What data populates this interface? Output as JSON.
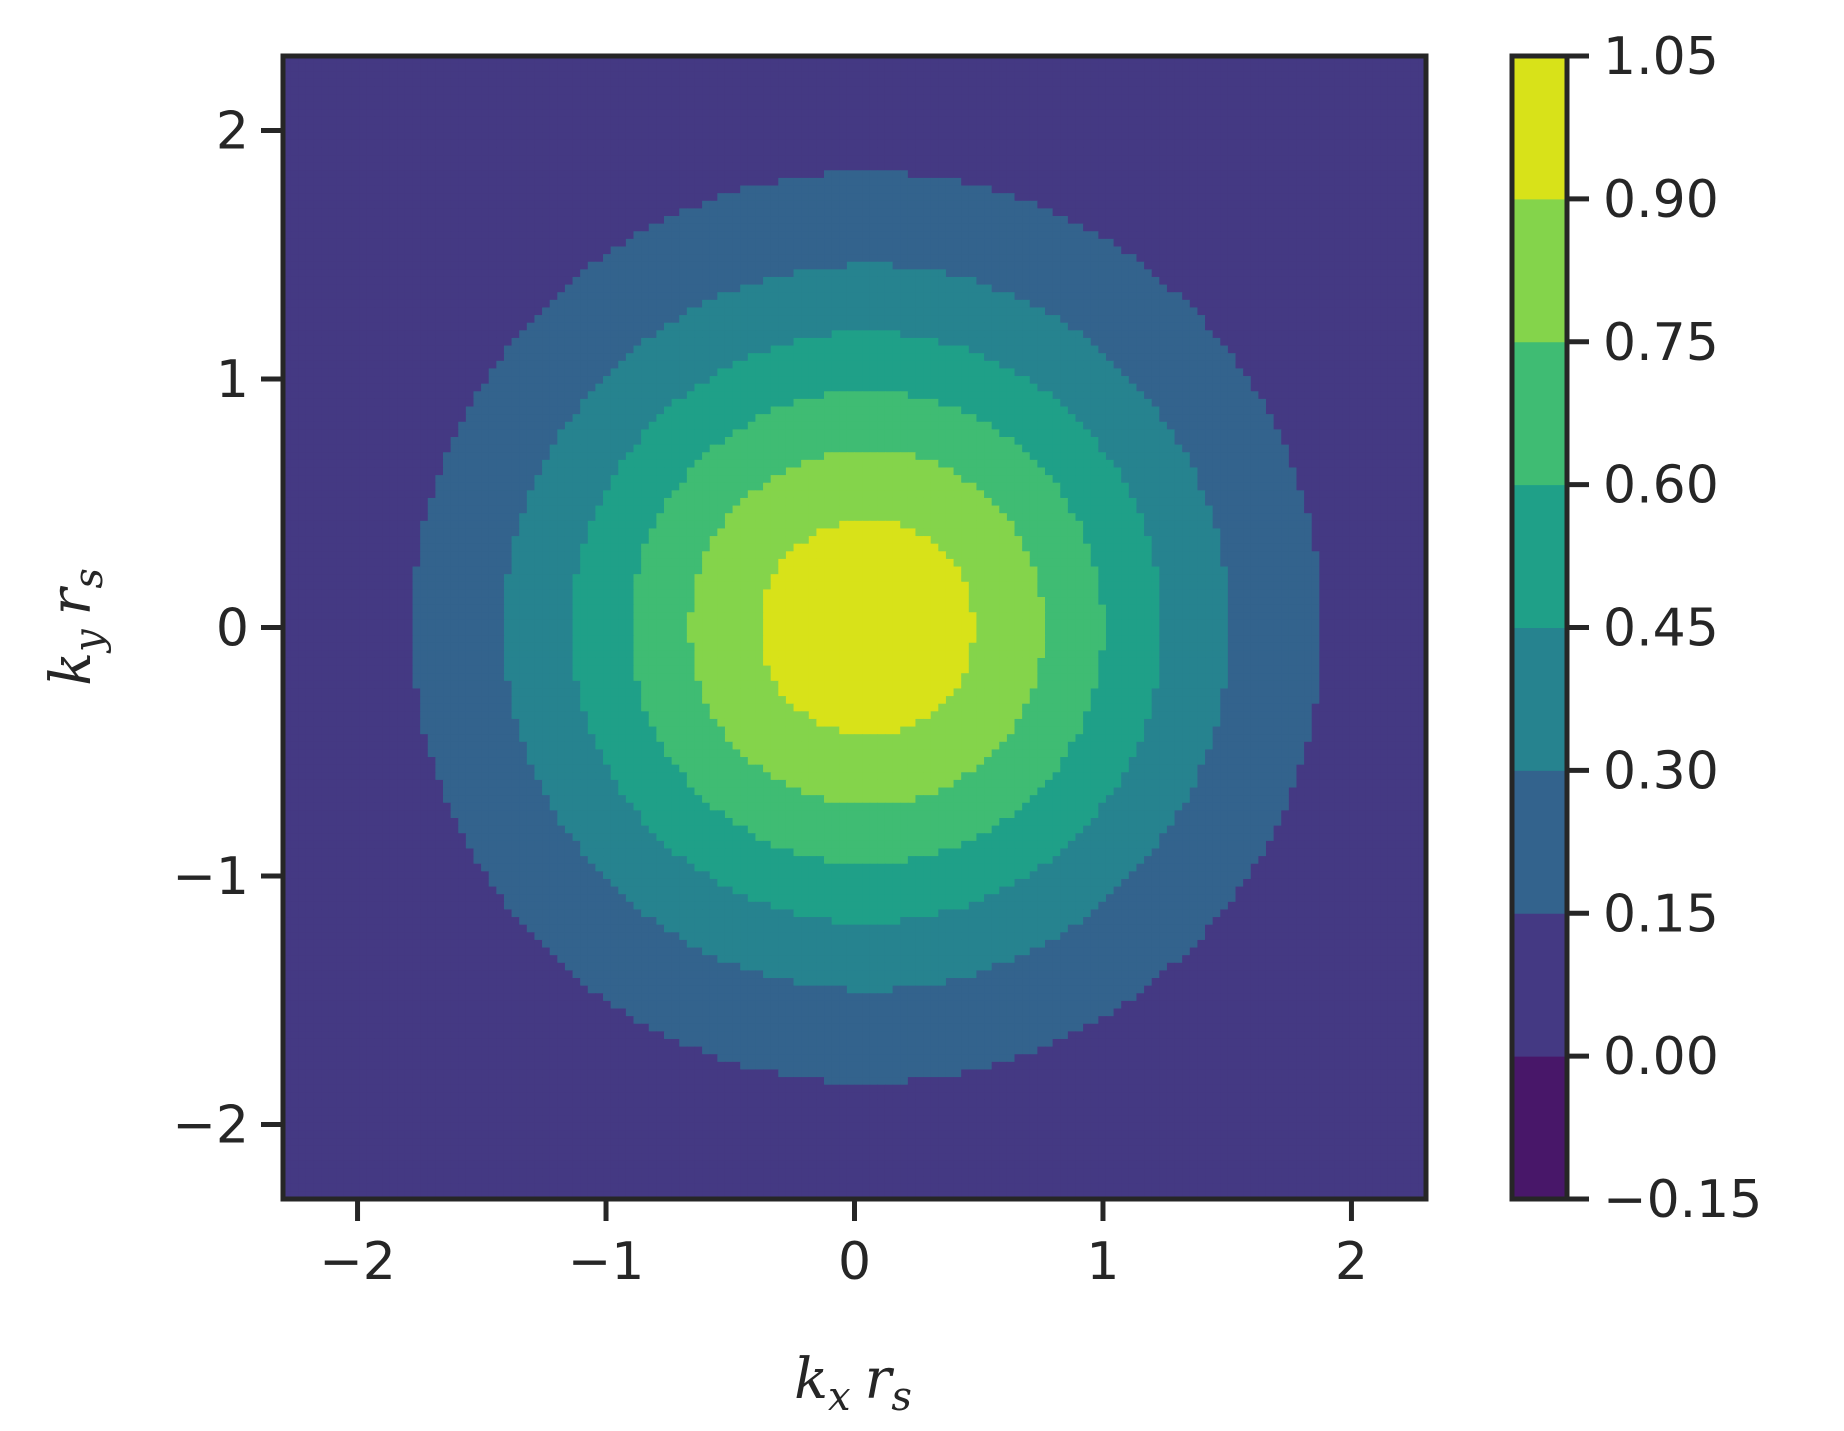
{
  "chart_data": {
    "type": "heatmap",
    "subtype": "filled-contour",
    "title": "",
    "xlabel": {
      "base": "k",
      "sub": "x",
      "base2": "r",
      "sub2": "s"
    },
    "ylabel": {
      "base": "k",
      "sub": "y",
      "base2": "r",
      "sub2": "s"
    },
    "xlim": [
      -2.3,
      2.3
    ],
    "ylim": [
      -2.3,
      2.3
    ],
    "xticks": [
      -2,
      -1,
      0,
      1,
      2
    ],
    "yticks": [
      -2,
      -1,
      0,
      1,
      2
    ],
    "xtick_labels": [
      "−2",
      "−1",
      "0",
      "1",
      "2"
    ],
    "ytick_labels": [
      "−2",
      "−1",
      "0",
      "1",
      "2"
    ],
    "colormap": "viridis",
    "grid": false,
    "field": {
      "description_free": true,
      "center": [
        0.05,
        0.0
      ],
      "peak": 1.0,
      "width": 1.33,
      "shape_exponent": 2.0
    },
    "colorbar": {
      "levels": [
        -0.15,
        0.0,
        0.15,
        0.3,
        0.45,
        0.6,
        0.75,
        0.9,
        1.05
      ],
      "tick_labels": [
        "−0.15",
        "0.00",
        "0.15",
        "0.30",
        "0.45",
        "0.60",
        "0.75",
        "0.90",
        "1.05"
      ],
      "colors": [
        "#481769",
        "#443983",
        "#33638d",
        "#26838f",
        "#1fa088",
        "#3fbc73",
        "#84d44b",
        "#d8e219"
      ]
    }
  }
}
